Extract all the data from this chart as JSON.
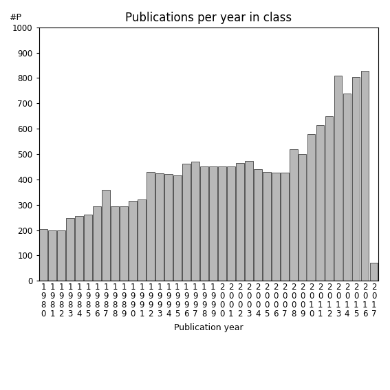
{
  "title": "Publications per year in class",
  "xlabel": "Publication year",
  "ylabel": "#P",
  "years": [
    1980,
    1981,
    1982,
    1983,
    1984,
    1985,
    1986,
    1987,
    1988,
    1989,
    1990,
    1991,
    1992,
    1993,
    1994,
    1995,
    1996,
    1997,
    1998,
    1999,
    2000,
    2001,
    2002,
    2003,
    2004,
    2005,
    2006,
    2007,
    2008,
    2009,
    2010,
    2011,
    2012,
    2013,
    2014,
    2015,
    2016,
    2017
  ],
  "values": [
    205,
    198,
    200,
    248,
    255,
    260,
    293,
    358,
    295,
    293,
    316,
    320,
    430,
    425,
    420,
    415,
    462,
    470,
    452,
    450,
    452,
    450,
    465,
    473,
    440,
    430,
    427,
    426,
    520,
    500,
    578,
    615,
    648,
    808,
    740,
    805,
    828,
    70
  ],
  "bar_color": "#b8b8b8",
  "bar_edge_color": "#404040",
  "ylim": [
    0,
    1000
  ],
  "yticks": [
    0,
    100,
    200,
    300,
    400,
    500,
    600,
    700,
    800,
    900,
    1000
  ],
  "bg_color": "#ffffff",
  "title_fontsize": 12,
  "label_fontsize": 9,
  "tick_fontsize": 8.5
}
